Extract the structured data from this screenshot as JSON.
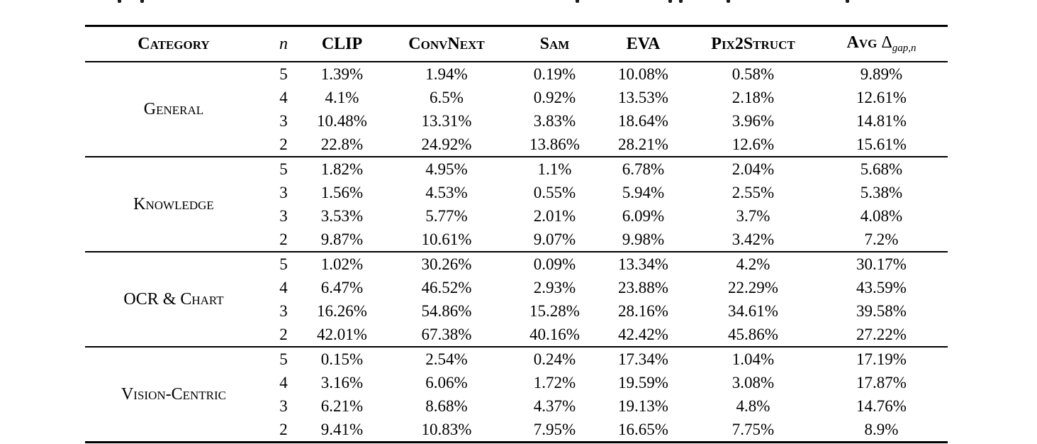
{
  "table": {
    "headers": {
      "category": "Category",
      "n": "n",
      "clip": "CLIP",
      "convnext": "ConvNext",
      "sam": "Sam",
      "eva": "EVA",
      "pix2struct": "Pix2Struct",
      "avg_label": "Avg",
      "avg_delta": "Δ",
      "avg_subscript": "gap,n"
    },
    "groups": [
      {
        "category": "General",
        "rows": [
          {
            "n": "5",
            "values": [
              "1.39%",
              "1.94%",
              "0.19%",
              "10.08%",
              "0.58%",
              "9.89%"
            ]
          },
          {
            "n": "4",
            "values": [
              "4.1%",
              "6.5%",
              "0.92%",
              "13.53%",
              "2.18%",
              "12.61%"
            ]
          },
          {
            "n": "3",
            "values": [
              "10.48%",
              "13.31%",
              "3.83%",
              "18.64%",
              "3.96%",
              "14.81%"
            ]
          },
          {
            "n": "2",
            "values": [
              "22.8%",
              "24.92%",
              "13.86%",
              "28.21%",
              "12.6%",
              "15.61%"
            ]
          }
        ]
      },
      {
        "category": "Knowledge",
        "rows": [
          {
            "n": "5",
            "values": [
              "1.82%",
              "4.95%",
              "1.1%",
              "6.78%",
              "2.04%",
              "5.68%"
            ]
          },
          {
            "n": "3",
            "values": [
              "1.56%",
              "4.53%",
              "0.55%",
              "5.94%",
              "2.55%",
              "5.38%"
            ]
          },
          {
            "n": "3",
            "values": [
              "3.53%",
              "5.77%",
              "2.01%",
              "6.09%",
              "3.7%",
              "4.08%"
            ]
          },
          {
            "n": "2",
            "values": [
              "9.87%",
              "10.61%",
              "9.07%",
              "9.98%",
              "3.42%",
              "7.2%"
            ]
          }
        ]
      },
      {
        "category": "OCR & Chart",
        "rows": [
          {
            "n": "5",
            "values": [
              "1.02%",
              "30.26%",
              "0.09%",
              "13.34%",
              "4.2%",
              "30.17%"
            ]
          },
          {
            "n": "4",
            "values": [
              "6.47%",
              "46.52%",
              "2.93%",
              "23.88%",
              "22.29%",
              "43.59%"
            ]
          },
          {
            "n": "3",
            "values": [
              "16.26%",
              "54.86%",
              "15.28%",
              "28.16%",
              "34.61%",
              "39.58%"
            ]
          },
          {
            "n": "2",
            "values": [
              "42.01%",
              "67.38%",
              "40.16%",
              "42.42%",
              "45.86%",
              "27.22%"
            ]
          }
        ]
      },
      {
        "category": "Vision-Centric",
        "rows": [
          {
            "n": "5",
            "values": [
              "0.15%",
              "2.54%",
              "0.24%",
              "17.34%",
              "1.04%",
              "17.19%"
            ]
          },
          {
            "n": "4",
            "values": [
              "3.16%",
              "6.06%",
              "1.72%",
              "19.59%",
              "3.08%",
              "17.87%"
            ]
          },
          {
            "n": "3",
            "values": [
              "6.21%",
              "8.68%",
              "4.37%",
              "19.13%",
              "4.8%",
              "14.76%"
            ]
          },
          {
            "n": "2",
            "values": [
              "9.41%",
              "10.83%",
              "7.95%",
              "16.65%",
              "7.75%",
              "8.9%"
            ]
          }
        ]
      }
    ]
  }
}
